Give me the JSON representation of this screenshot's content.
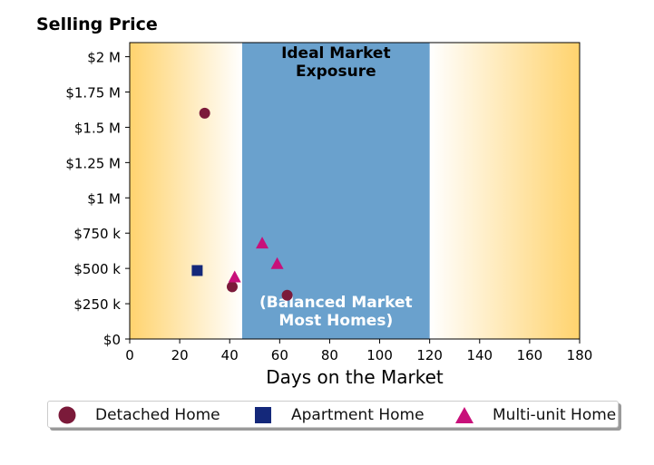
{
  "chart_data": {
    "type": "scatter",
    "ylabel": "Selling Price",
    "xlabel": "Days on the Market",
    "xlim": [
      0,
      180
    ],
    "ylim": [
      0,
      2100000
    ],
    "x_ticks": [
      0,
      20,
      40,
      60,
      80,
      100,
      120,
      140,
      160,
      180
    ],
    "y_ticks": [
      {
        "value": 0,
        "label": "$0"
      },
      {
        "value": 250000,
        "label": "$250 k"
      },
      {
        "value": 500000,
        "label": "$500 k"
      },
      {
        "value": 750000,
        "label": "$750 k"
      },
      {
        "value": 1000000,
        "label": "$1 M"
      },
      {
        "value": 1250000,
        "label": "$1.25 M"
      },
      {
        "value": 1500000,
        "label": "$1.5 M"
      },
      {
        "value": 1750000,
        "label": "$1.75 M"
      },
      {
        "value": 2000000,
        "label": "$2 M"
      }
    ],
    "grid": false,
    "legend_position": "bottom",
    "bands": {
      "ideal": {
        "x_start": 45,
        "x_end": 120,
        "color": "#6aa1cd"
      },
      "edge_color": "#ffd36e",
      "ideal_label": "Ideal Market\nExposure",
      "balanced_label": "(Balanced Market\nMost Homes)"
    },
    "series": [
      {
        "name": "Detached Home",
        "marker": "circle",
        "color": "#7b1a3a",
        "points": [
          [
            30,
            1600000
          ],
          [
            41,
            370000
          ],
          [
            63,
            310000
          ]
        ]
      },
      {
        "name": "Apartment Home",
        "marker": "square",
        "color": "#14287a",
        "points": [
          [
            27,
            485000
          ]
        ]
      },
      {
        "name": "Multi-unit Home",
        "marker": "triangle",
        "color": "#c8107a",
        "points": [
          [
            42,
            440000
          ],
          [
            53,
            680000
          ],
          [
            59,
            535000
          ]
        ]
      }
    ]
  }
}
